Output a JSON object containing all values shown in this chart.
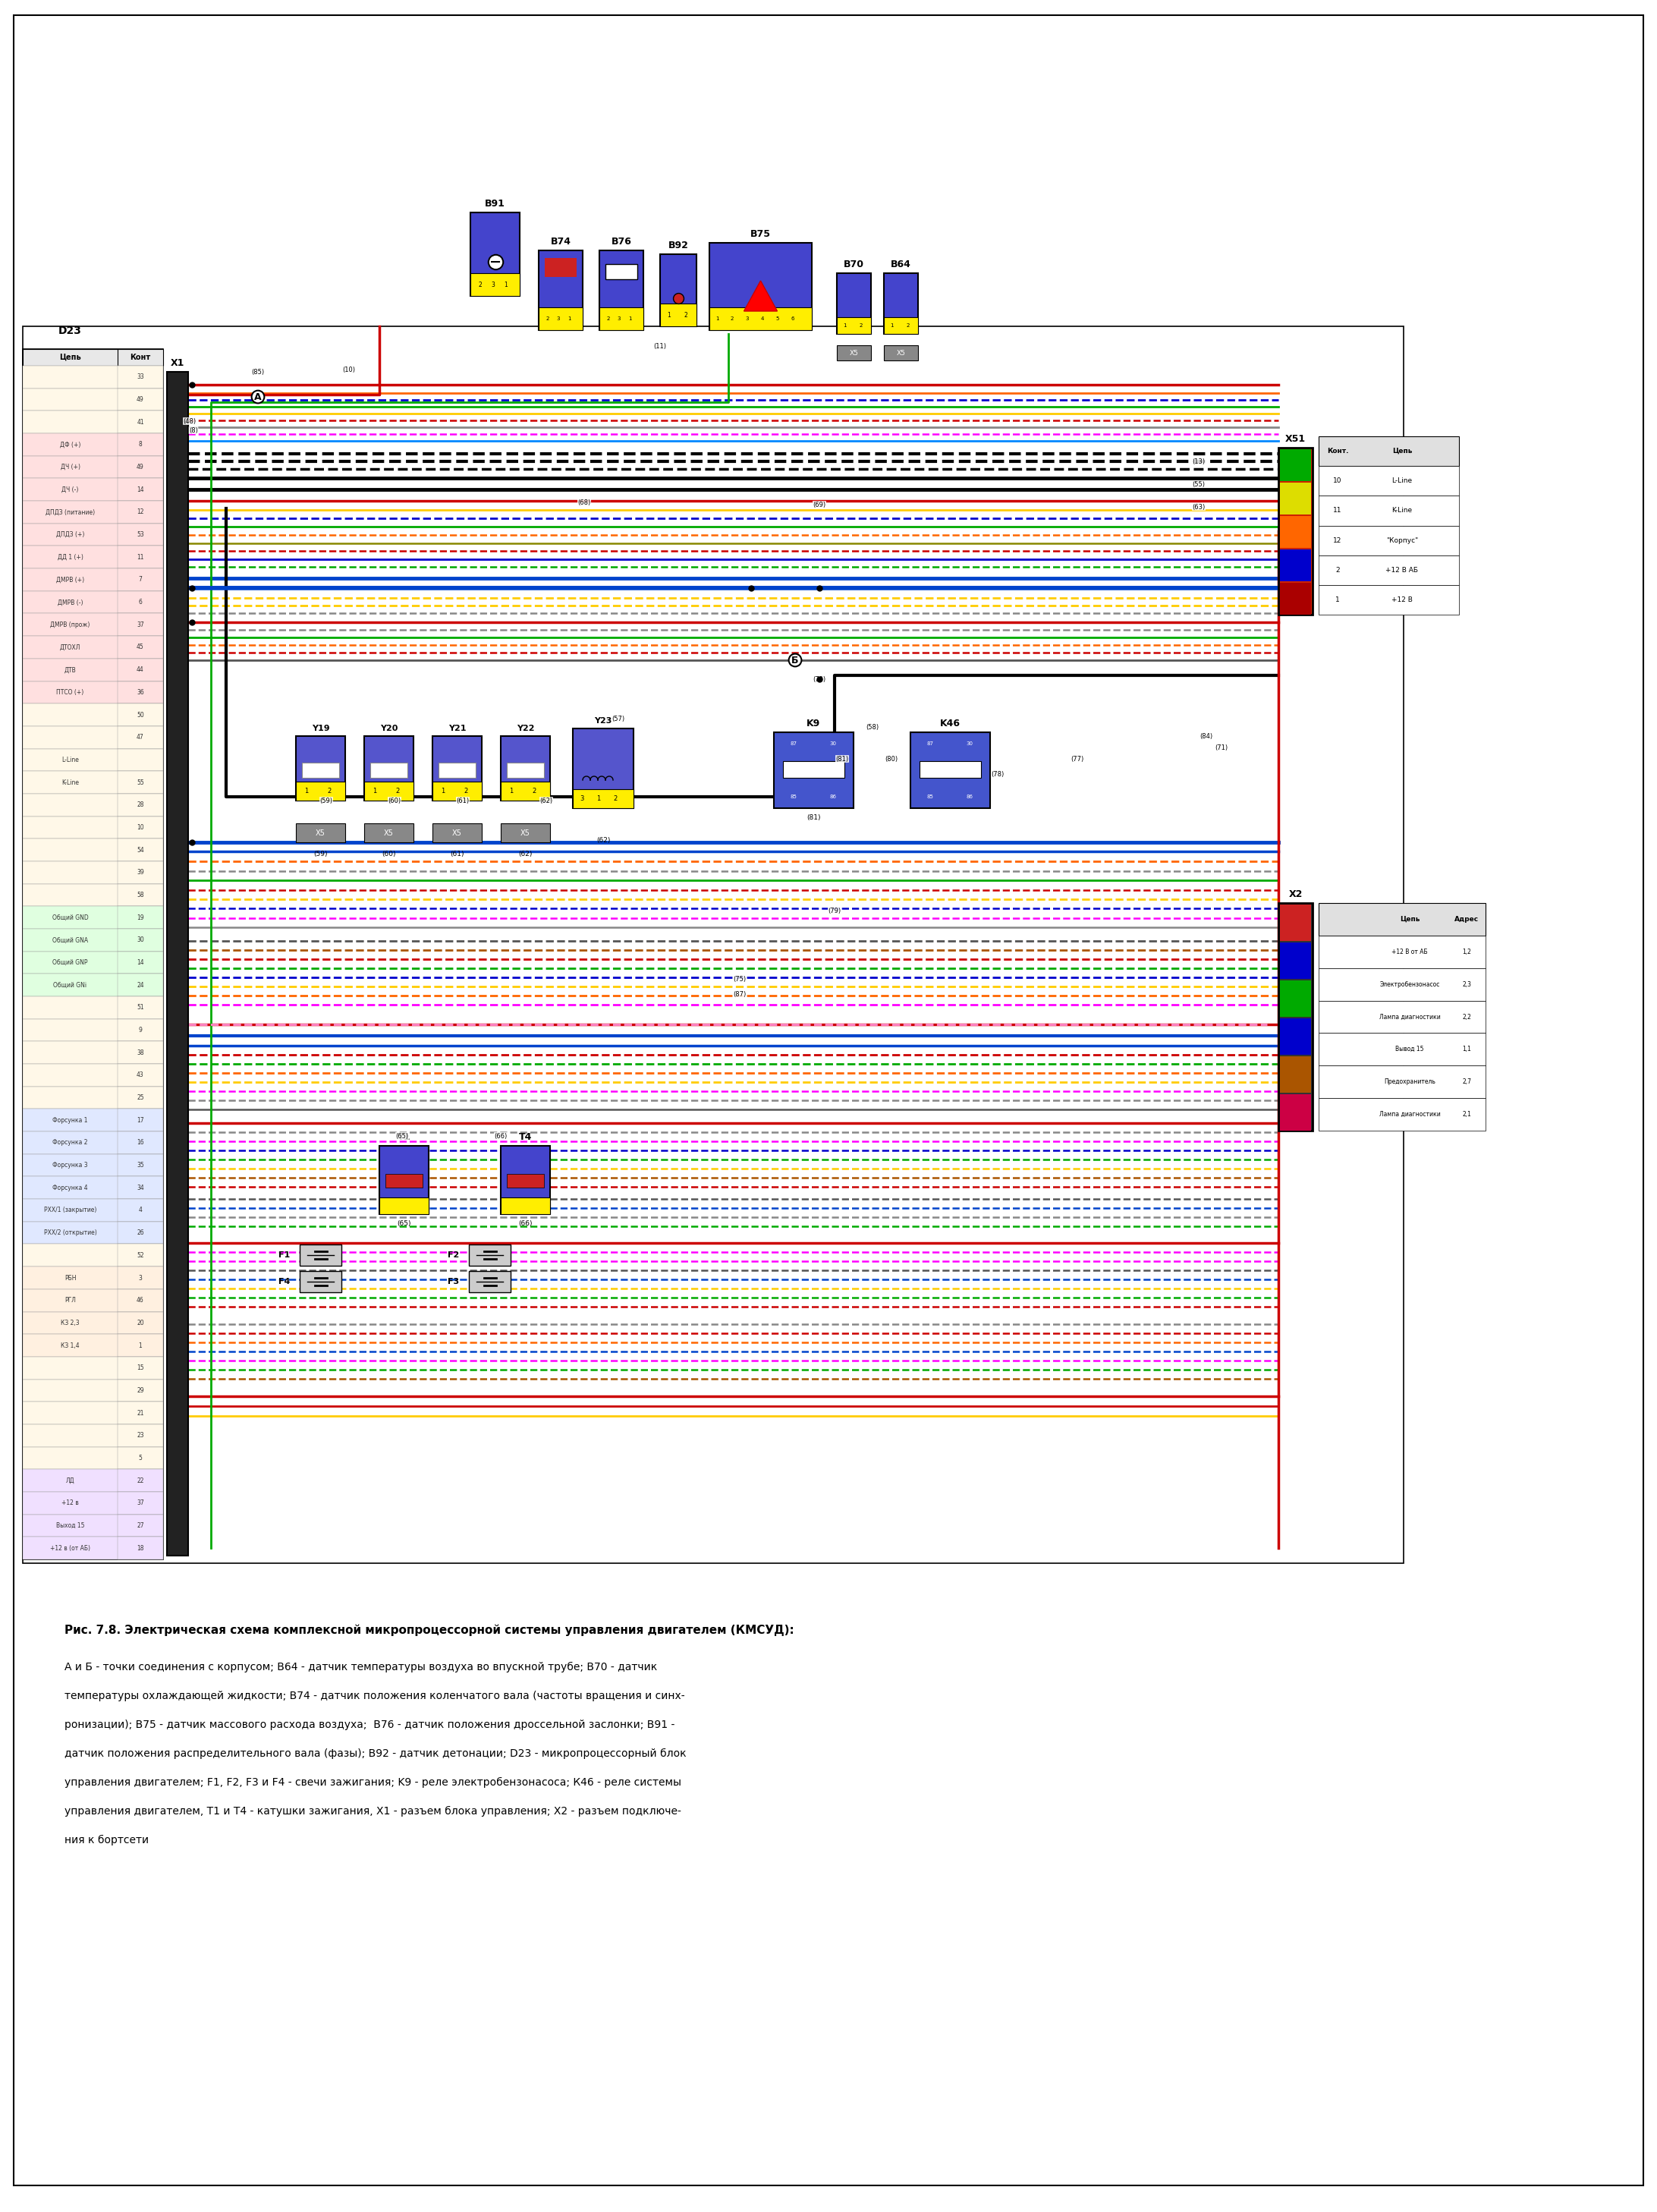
{
  "page_width": 21.84,
  "page_height": 29.15,
  "bg_color": "#ffffff",
  "title_bold": "Рис. 7.8. Электрическая схема комплексной микропроцессорной системы управления двигателем (КМСУД):",
  "caption_lines": [
    "А и Б - точки соединения с корпусом; В64 - датчик температуры воздуха во впускной трубе; В70 - датчик температуры охлаждающей жидкости; В74 - датчик положения коленчатого вала (частоты вращения и синх-",
    "ронизации); В75 - датчик массового расхода воздуха;  В76 - датчик положения дроссельной заслонки; В91 - датчик положения распределительного вала (фазы); В92 - датчик детонации; D23 - микропроцессорный блок",
    "управления двигателем; F1, F2, F3 и F4 - свечи зажигания; K9 - реле электробензонасоса; К46 - реле системы управления двигателем, Т1 и Т4 - катушки зажигания, Х1 - разъем блока управления; Х2 - разъем подключе-",
    "ния к бортсети"
  ],
  "d23_rows": [
    [
      "",
      "33"
    ],
    [
      "",
      "49"
    ],
    [
      "",
      "41"
    ],
    [
      "ДФ (+)",
      "8"
    ],
    [
      "ДЧ (+)",
      "49"
    ],
    [
      "ДЧ (-)",
      "14"
    ],
    [
      "ДПДЗ (питание)",
      "12"
    ],
    [
      "ДПДЗ (+)",
      "53"
    ],
    [
      "ДД 1 (+)",
      "11"
    ],
    [
      "ДМРВ (+)",
      "7"
    ],
    [
      "ДМРВ (-)",
      "6"
    ],
    [
      "ДМРВ (прож)",
      "37"
    ],
    [
      "ДТОХЛ",
      "45"
    ],
    [
      "ДТВ",
      "44"
    ],
    [
      "ПТСО (+)",
      "36"
    ],
    [
      "",
      "50"
    ],
    [
      "",
      "47"
    ],
    [
      "L-Line",
      ""
    ],
    [
      "K-Line",
      "55"
    ],
    [
      "",
      "28"
    ],
    [
      "",
      "10"
    ],
    [
      "",
      "54"
    ],
    [
      "",
      "39"
    ],
    [
      "",
      "58"
    ],
    [
      "Общий GND",
      "19"
    ],
    [
      "Общий GNA",
      "30"
    ],
    [
      "Общий GNP",
      "14"
    ],
    [
      "Общий GNi",
      "24"
    ],
    [
      "",
      "51"
    ],
    [
      "",
      "9"
    ],
    [
      "",
      "38"
    ],
    [
      "",
      "43"
    ],
    [
      "",
      "25"
    ],
    [
      "Форсунка 1",
      "17"
    ],
    [
      "Форсунка 2",
      "16"
    ],
    [
      "Форсунка 3",
      "35"
    ],
    [
      "Форсунка 4",
      "34"
    ],
    [
      "РХХ/1 (закрытие)",
      "4"
    ],
    [
      "РХХ/2 (открытие)",
      "26"
    ],
    [
      "",
      "52"
    ],
    [
      "РБН",
      "3"
    ],
    [
      "РГЛ",
      "46"
    ],
    [
      "КЗ 2,3",
      "20"
    ],
    [
      "КЗ 1,4",
      "1"
    ],
    [
      "",
      "15"
    ],
    [
      "",
      "29"
    ],
    [
      "",
      "21"
    ],
    [
      "",
      "23"
    ],
    [
      "",
      "5"
    ],
    [
      "ЛД",
      "22"
    ],
    [
      "+12 в",
      "37"
    ],
    [
      "Выход 15",
      "27"
    ],
    [
      "+12 в (от АБ)",
      "18"
    ]
  ],
  "x51_rows": [
    [
      "10",
      "L-Line"
    ],
    [
      "11",
      "K-Line"
    ],
    [
      "12",
      "\"Корпус\""
    ],
    [
      "2",
      "+12 В АБ"
    ],
    [
      "1",
      "+12 В"
    ]
  ],
  "x2_rows": [
    [
      "+12 В от АБ",
      "1,2"
    ],
    [
      "Электробензонасос",
      "2,3"
    ],
    [
      "Лампа диагностики",
      "2,2"
    ],
    [
      "Вывод 15",
      "1,1"
    ],
    [
      "Предохранитель",
      "2,7"
    ],
    [
      "Лампа диагностики",
      "2,1"
    ]
  ]
}
